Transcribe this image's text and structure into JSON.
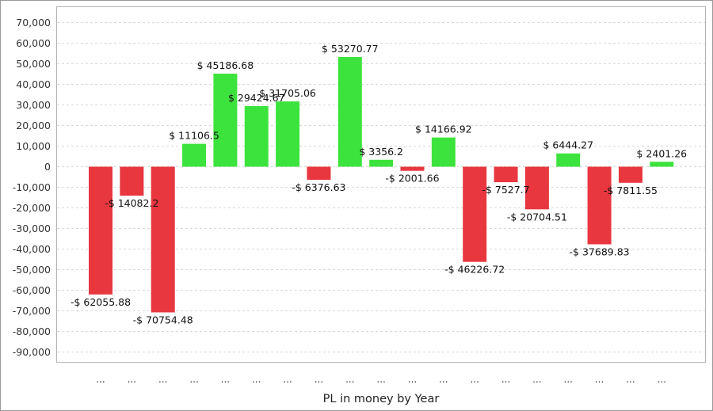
{
  "chart_data": {
    "type": "bar",
    "title": "",
    "xlabel": "PL in money by Year",
    "ylabel": "",
    "ylim": [
      -95000,
      75000
    ],
    "yticks": [
      70000,
      60000,
      50000,
      40000,
      30000,
      20000,
      10000,
      0,
      -10000,
      -20000,
      -30000,
      -40000,
      -50000,
      -60000,
      -70000,
      -80000,
      -90000
    ],
    "ytick_labels": [
      "70,000",
      "60,000",
      "50,000",
      "40,000",
      "30,000",
      "20,000",
      "10,000",
      "0",
      "-10,000",
      "-20,000",
      "-30,000",
      "-40,000",
      "-50,000",
      "-60,000",
      "-70,000",
      "-80,000",
      "-90,000"
    ],
    "grid": true,
    "legend": "none",
    "categories": [
      "...",
      "...",
      "...",
      "...",
      "...",
      "...",
      "...",
      "...",
      "...",
      "...",
      "...",
      "...",
      "...",
      "...",
      "...",
      "...",
      "...",
      "...",
      "..."
    ],
    "values": [
      -62055.88,
      -14082.2,
      -70754.48,
      11106.5,
      45186.68,
      29424.67,
      31705.06,
      -6376.63,
      53270.77,
      3356.2,
      -2001.66,
      14166.92,
      -46226.72,
      -7527.7,
      -20704.51,
      6444.27,
      -37689.83,
      -7811.55,
      2401.26
    ],
    "data_labels": [
      "-$ 62055.88",
      "-$ 14082.2",
      "-$ 70754.48",
      "$ 11106.5",
      "$ 45186.68",
      "$ 29424.67",
      "$ 31705.06",
      "-$ 6376.63",
      "$ 53270.77",
      "$ 3356.2",
      "-$ 2001.66",
      "$ 14166.92",
      "-$ 46226.72",
      "-$ 7527.7",
      "-$ 20704.51",
      "$ 6444.27",
      "-$ 37689.83",
      "-$ 7811.55",
      "$ 2401.26"
    ],
    "colors": {
      "positive": "#3de33d",
      "negative": "#e8373f"
    }
  }
}
